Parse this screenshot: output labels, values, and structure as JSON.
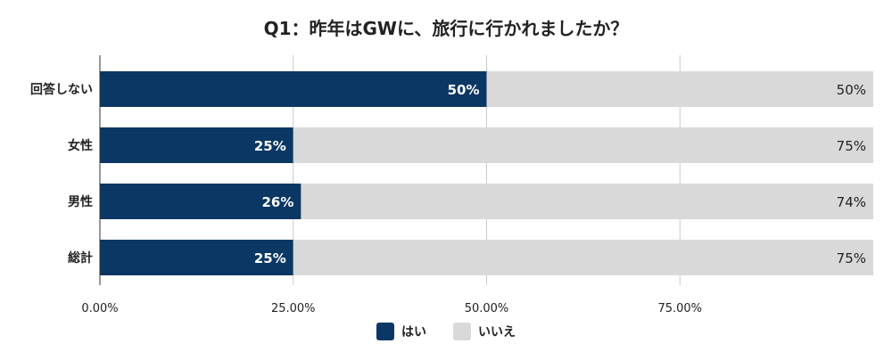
{
  "chart_data": {
    "type": "bar",
    "orientation": "horizontal",
    "stacked": "percent",
    "title": "Q1：昨年はGWに、旅行に行かれましたか？",
    "categories": [
      "回答しない",
      "女性",
      "男性",
      "総計"
    ],
    "series": [
      {
        "name": "はい",
        "values": [
          50,
          25,
          26,
          25
        ],
        "labels": [
          "50%",
          "25%",
          "26%",
          "25%"
        ],
        "color": "#0b3764"
      },
      {
        "name": "いいえ",
        "values": [
          50,
          75,
          74,
          75
        ],
        "labels": [
          "50%",
          "75%",
          "74%",
          "75%"
        ],
        "color": "#d9d9d9"
      }
    ],
    "xlim": [
      0,
      100
    ],
    "xticks": [
      0,
      25,
      50,
      75
    ],
    "xtick_labels": [
      "0.00%",
      "25.00%",
      "50.00%",
      "75.00%"
    ],
    "grid": true,
    "legend_position": "bottom"
  }
}
